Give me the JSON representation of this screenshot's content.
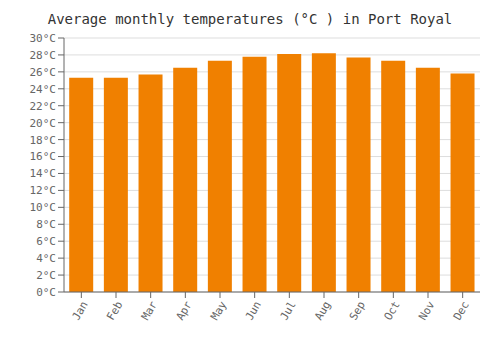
{
  "chart_data": {
    "type": "bar",
    "title": "Average monthly temperatures (°C ) in Port Royal",
    "categories": [
      "Jan",
      "Feb",
      "Mar",
      "Apr",
      "May",
      "Jun",
      "Jul",
      "Aug",
      "Sep",
      "Oct",
      "Nov",
      "Dec"
    ],
    "values": [
      25.3,
      25.3,
      25.7,
      26.5,
      27.3,
      27.8,
      28.1,
      28.2,
      27.7,
      27.3,
      26.5,
      25.8
    ],
    "color": "#F08000",
    "ylim": [
      0,
      30
    ],
    "yticks": [
      {
        "value": 0,
        "label": "0°C"
      },
      {
        "value": 2,
        "label": "2°C"
      },
      {
        "value": 4,
        "label": "4°C"
      },
      {
        "value": 6,
        "label": "6°C"
      },
      {
        "value": 8,
        "label": "8°C"
      },
      {
        "value": 10,
        "label": "10°C"
      },
      {
        "value": 12,
        "label": "12°C"
      },
      {
        "value": 14,
        "label": "14°C"
      },
      {
        "value": 16,
        "label": "16°C"
      },
      {
        "value": 18,
        "label": "18°C"
      },
      {
        "value": 20,
        "label": "20°C"
      },
      {
        "value": 22,
        "label": "22°C"
      },
      {
        "value": 24,
        "label": "24°C"
      },
      {
        "value": 26,
        "label": "26°C"
      },
      {
        "value": 28,
        "label": "28°C"
      },
      {
        "value": 30,
        "label": "30°C"
      }
    ],
    "grid": true
  }
}
